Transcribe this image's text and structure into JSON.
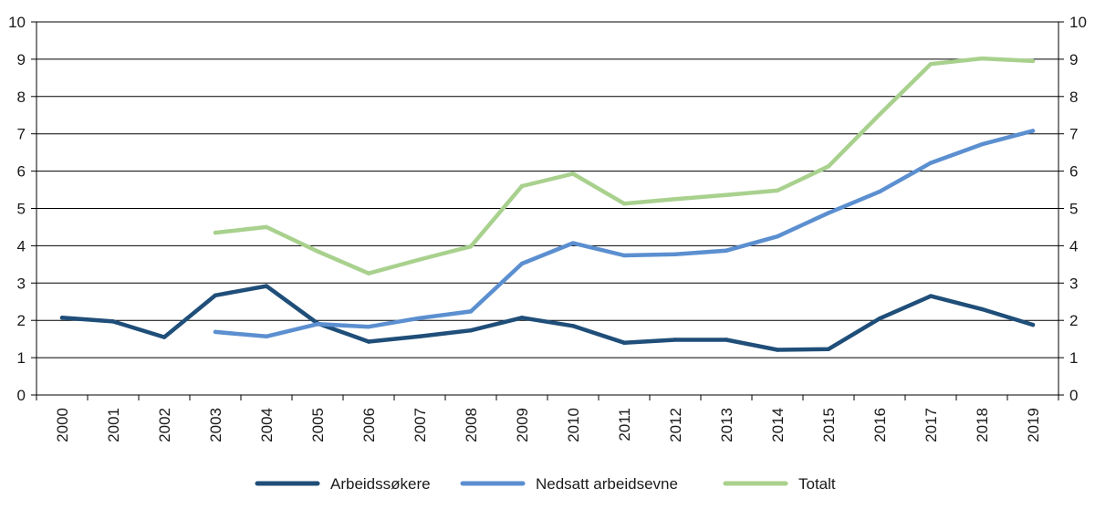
{
  "chart_data": {
    "type": "line",
    "categories": [
      "2000",
      "2001",
      "2002",
      "2003",
      "2004",
      "2005",
      "2006",
      "2007",
      "2008",
      "2009",
      "2010",
      "2011",
      "2012",
      "2013",
      "2014",
      "2015",
      "2016",
      "2017",
      "2018",
      "2019"
    ],
    "ylim": [
      0,
      10
    ],
    "yticks": [
      0,
      1,
      2,
      3,
      4,
      5,
      6,
      7,
      8,
      9,
      10
    ],
    "dual_y_axis": true,
    "grid": "horizontal",
    "legend_position": "bottom",
    "series": [
      {
        "name": "Arbeidssøkere",
        "color": "#1f4e79",
        "values": [
          2.07,
          1.97,
          1.55,
          2.67,
          2.92,
          1.92,
          1.43,
          1.57,
          1.73,
          2.07,
          1.85,
          1.4,
          1.48,
          1.48,
          1.21,
          1.23,
          2.05,
          2.65,
          2.3,
          1.88
        ]
      },
      {
        "name": "Nedsatt arbeidsevne",
        "color": "#5b8fd0",
        "values": [
          null,
          null,
          null,
          1.69,
          1.57,
          1.9,
          1.83,
          2.06,
          2.24,
          3.52,
          4.07,
          3.74,
          3.77,
          3.87,
          4.25,
          4.88,
          5.45,
          6.22,
          6.72,
          7.08
        ]
      },
      {
        "name": "Totalt",
        "color": "#a9d18e",
        "values": [
          null,
          null,
          null,
          4.35,
          4.5,
          3.85,
          3.26,
          3.63,
          3.98,
          5.6,
          5.93,
          5.13,
          5.25,
          5.36,
          5.48,
          6.13,
          7.52,
          8.87,
          9.02,
          8.95
        ]
      }
    ]
  }
}
